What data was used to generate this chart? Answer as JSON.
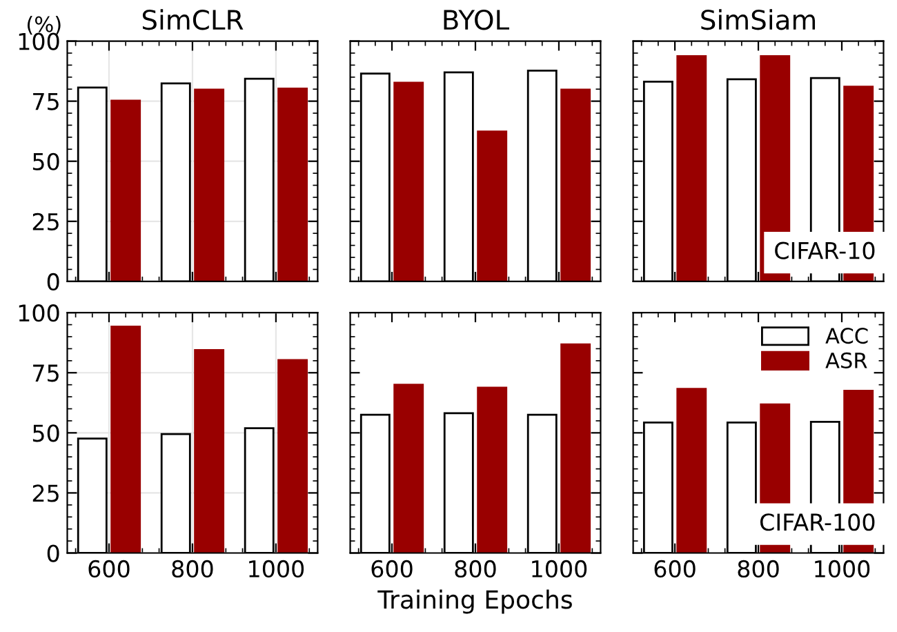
{
  "chart_data": [
    {
      "type": "bar",
      "title": "SimCLR",
      "ylabel": "(%)",
      "categories": [
        "600",
        "800",
        "1000"
      ],
      "series": [
        {
          "color": "#ffffff",
          "values": [
            80.7,
            82.4,
            84.3
          ]
        },
        {
          "color": "#990000",
          "values": [
            75.2,
            79.8,
            80.2
          ]
        }
      ],
      "ylim": [
        0,
        100
      ],
      "yticks": [
        0,
        25,
        50,
        75,
        100
      ],
      "grid": true,
      "tick_labels": "y"
    },
    {
      "type": "bar",
      "title": "BYOL",
      "categories": [
        "600",
        "800",
        "1000"
      ],
      "series": [
        {
          "color": "#ffffff",
          "values": [
            86.5,
            87.0,
            87.7
          ]
        },
        {
          "color": "#990000",
          "values": [
            82.7,
            62.4,
            79.8
          ]
        }
      ],
      "ylim": [
        0,
        100
      ],
      "yticks": [
        0,
        25,
        50,
        75,
        100
      ],
      "tick_labels": false
    },
    {
      "type": "bar",
      "title": "SimSiam",
      "annotations": [
        "CIFAR-10"
      ],
      "categories": [
        "600",
        "800",
        "1000"
      ],
      "series": [
        {
          "color": "#ffffff",
          "values": [
            83.1,
            84.1,
            84.6
          ]
        },
        {
          "color": "#990000",
          "values": [
            93.7,
            93.7,
            81.0
          ]
        }
      ],
      "ylim": [
        0,
        100
      ],
      "yticks": [
        0,
        25,
        50,
        75,
        100
      ],
      "tick_labels": false
    },
    {
      "type": "bar",
      "categories": [
        "600",
        "800",
        "1000"
      ],
      "series": [
        {
          "color": "#ffffff",
          "values": [
            47.6,
            49.5,
            51.9
          ]
        },
        {
          "color": "#990000",
          "values": [
            94.2,
            84.4,
            80.3
          ]
        }
      ],
      "ylim": [
        0,
        100
      ],
      "yticks": [
        0,
        25,
        50,
        75,
        100
      ],
      "grid": true
    },
    {
      "type": "bar",
      "xlabel": "Training Epochs",
      "categories": [
        "600",
        "800",
        "1000"
      ],
      "series": [
        {
          "color": "#ffffff",
          "values": [
            57.5,
            58.2,
            57.5
          ]
        },
        {
          "color": "#990000",
          "values": [
            70.0,
            68.8,
            86.8
          ]
        }
      ],
      "ylim": [
        0,
        100
      ],
      "yticks": [
        0,
        25,
        50,
        75,
        100
      ],
      "tick_labels": "x"
    },
    {
      "type": "bar",
      "annotations": [
        "CIFAR-100"
      ],
      "categories": [
        "600",
        "800",
        "1000"
      ],
      "series": [
        {
          "name": "ACC",
          "color": "#ffffff",
          "values": [
            54.3,
            54.3,
            54.6
          ]
        },
        {
          "name": "ASR",
          "color": "#990000",
          "values": [
            68.3,
            61.8,
            67.5
          ]
        }
      ],
      "ylim": [
        0,
        100
      ],
      "yticks": [
        0,
        25,
        50,
        75,
        100
      ],
      "tick_labels": "x",
      "legend": "top right"
    }
  ]
}
